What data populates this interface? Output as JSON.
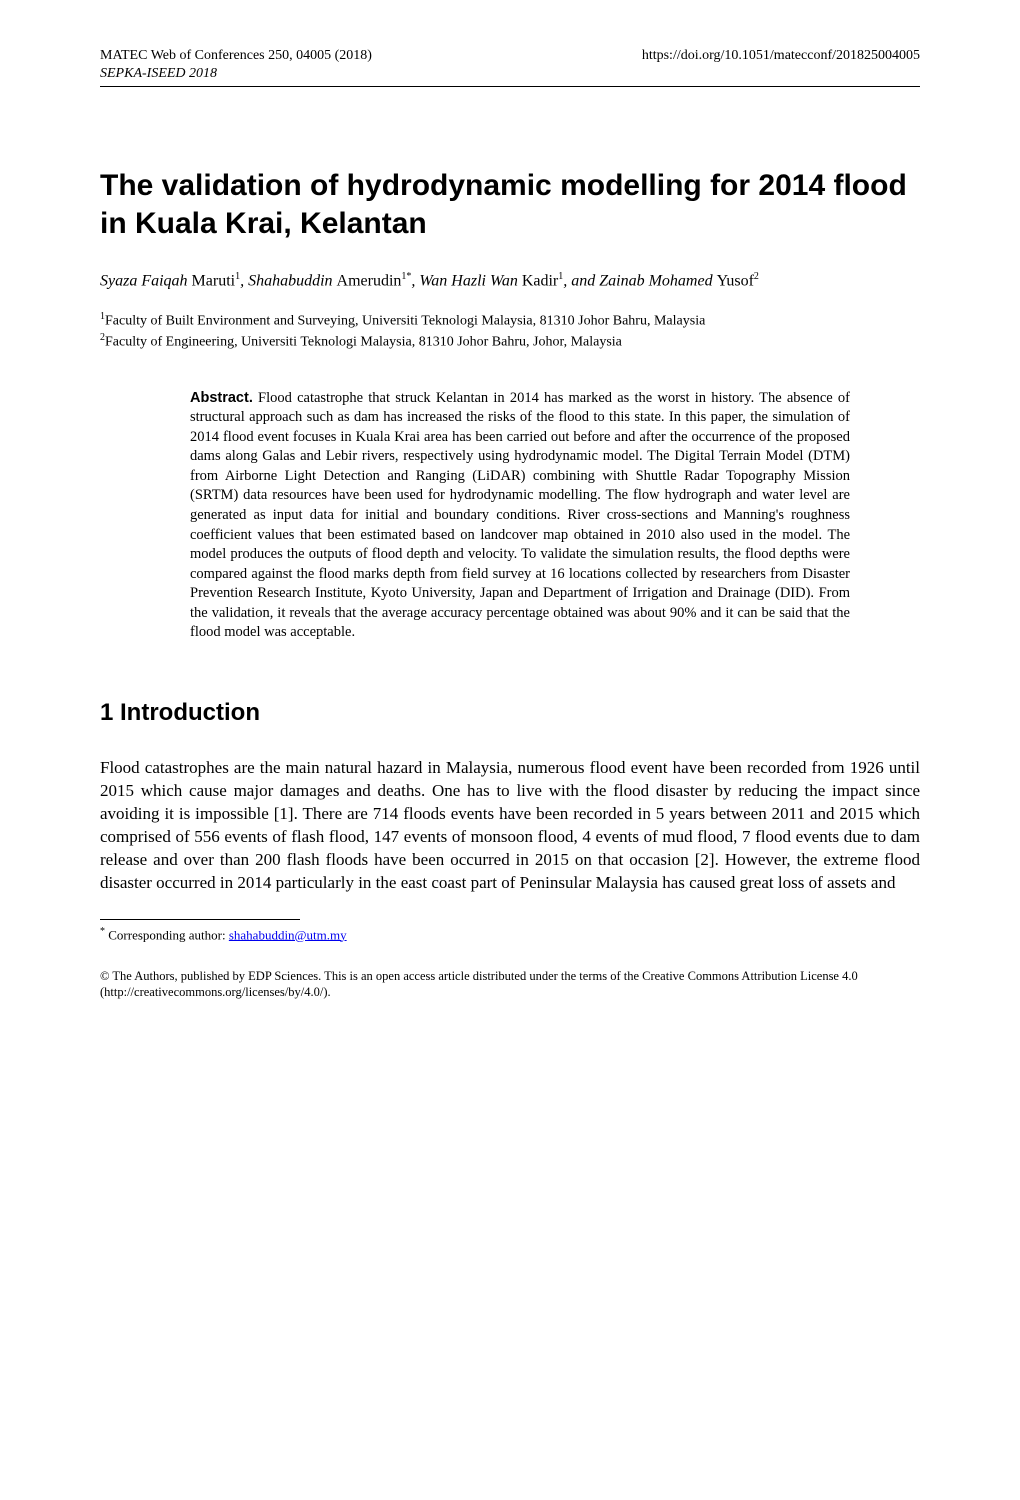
{
  "header": {
    "left": "MATEC Web of Conferences 250, 04005 (2018)",
    "right": "https://doi.org/10.1051/matecconf/201825004005",
    "sub": "SEPKA-ISEED 2018"
  },
  "title": "The validation of hydrodynamic modelling for 2014 flood in Kuala Krai, Kelantan",
  "authors": {
    "a1_first_italic": "Syaza Faiqah ",
    "a1_last": "Maruti",
    "a1_sup": "1",
    "sep1": ", ",
    "a2_first_italic": "Shahabuddin ",
    "a2_last": "Amerudin",
    "a2_sup": "1*",
    "sep2": ", ",
    "a3_first_italic": "Wan Hazli Wan ",
    "a3_last": "Kadir",
    "a3_sup": "1",
    "sep3": ", and ",
    "a4_first_italic": "Zainab Mohamed ",
    "a4_last": "Yusof",
    "a4_sup": "2"
  },
  "affiliations": {
    "a1_sup": "1",
    "a1": "Faculty of Built Environment and Surveying, Universiti Teknologi Malaysia, 81310 Johor Bahru, Malaysia",
    "a2_sup": "2",
    "a2": "Faculty of Engineering, Universiti Teknologi Malaysia, 81310 Johor Bahru, Johor, Malaysia"
  },
  "abstract": {
    "label": "Abstract.",
    "text": " Flood catastrophe that struck Kelantan in 2014 has marked as the worst in history. The absence of structural approach such as dam has increased the risks of the flood to this state. In this paper, the simulation of 2014 flood event focuses in Kuala Krai area has been carried out before and after the occurrence of the proposed dams along Galas and Lebir rivers, respectively using hydrodynamic model. The Digital Terrain Model (DTM) from Airborne Light Detection and Ranging (LiDAR) combining with Shuttle Radar Topography Mission (SRTM) data resources have been used for hydrodynamic modelling. The flow hydrograph and water level are generated as input data for initial and boundary conditions. River cross-sections and Manning's roughness coefficient values that been estimated based on landcover map obtained in 2010 also used in the model. The model produces the outputs of flood depth and velocity. To validate the simulation results, the flood depths were compared against the flood marks depth from field survey at 16 locations collected by researchers from Disaster Prevention Research Institute, Kyoto University, Japan and Department of Irrigation and Drainage (DID). From the validation, it reveals that the average accuracy percentage obtained was about 90% and it can be said that the flood model was acceptable."
  },
  "section1": {
    "heading": "1 Introduction",
    "p1": "Flood catastrophes are the main natural hazard in Malaysia, numerous flood event have been recorded from 1926 until 2015 which cause major damages and deaths. One has to live with the flood disaster by reducing the impact since avoiding it is impossible [1]. There are 714 floods events have been recorded in 5 years between 2011 and 2015 which comprised of 556 events of flash flood, 147 events of monsoon flood, 4 events of mud flood, 7 flood events due to dam release and over than 200 flash floods have been occurred in 2015 on that occasion [2]. However, the extreme flood disaster occurred in 2014 particularly in the east coast part of Peninsular Malaysia has caused great loss of assets and"
  },
  "footnote": {
    "marker": "*",
    "text": " Corresponding author: ",
    "email": "shahabuddin@utm.my"
  },
  "license": "© The Authors, published by EDP Sciences. This is an open access article distributed under the terms of the Creative Commons Attribution License 4.0 (http://creativecommons.org/licenses/by/4.0/)."
}
